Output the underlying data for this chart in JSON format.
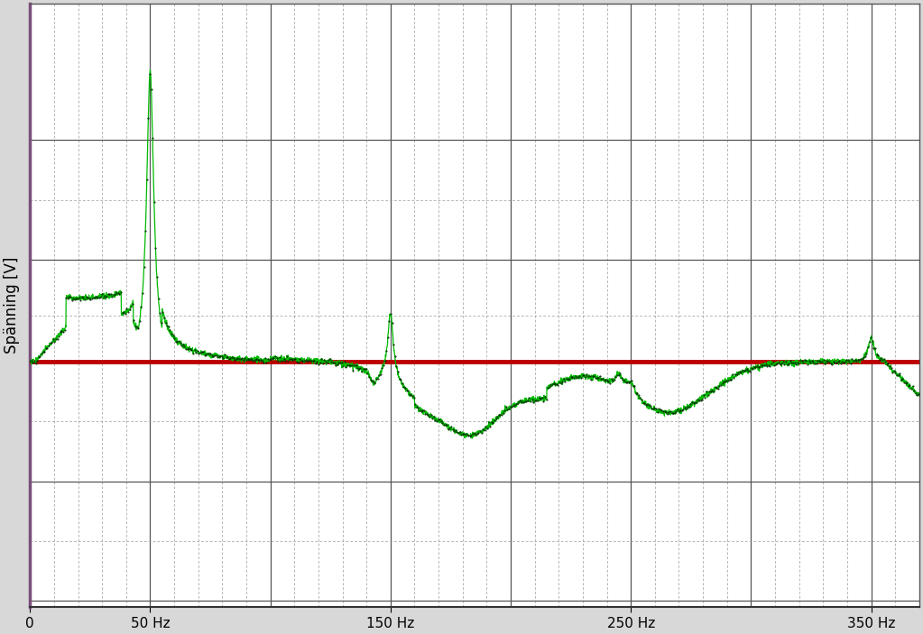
{
  "ylabel": "Spänning [V]",
  "xlim": [
    0,
    370
  ],
  "x_tick_labels": [
    "0",
    "50 Hz",
    "150 Hz",
    "250 Hz",
    "350 Hz"
  ],
  "x_tick_positions": [
    0,
    50,
    150,
    250,
    350
  ],
  "plot_bg_color": "#ffffff",
  "fig_bg_color": "#d8d8d8",
  "line_color_green": "#00bb00",
  "line_color_red": "#bb0000",
  "border_color_left": "#7b4f7b",
  "grid_major_color": "#555555",
  "grid_minor_color": "#999999",
  "ylabel_fontsize": 12,
  "tick_fontsize": 11,
  "ylim": [
    -0.72,
    1.05
  ],
  "red_line_y": 0.0,
  "num_points": 3700
}
